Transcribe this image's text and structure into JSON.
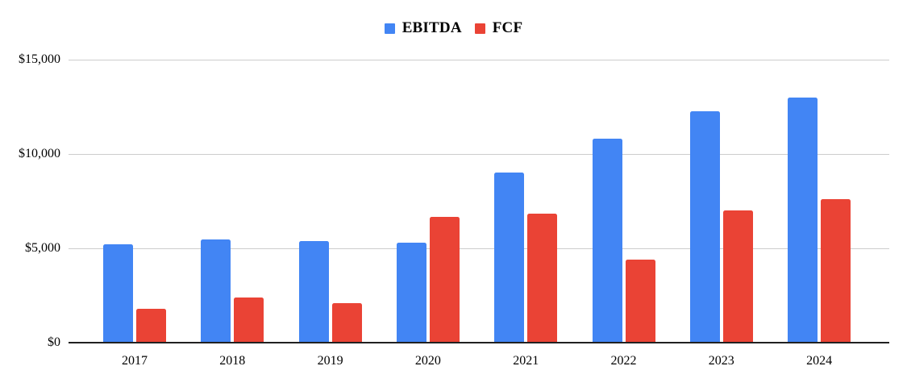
{
  "chart_data": {
    "type": "bar",
    "title": "",
    "xlabel": "",
    "ylabel": "",
    "categories": [
      "2017",
      "2018",
      "2019",
      "2020",
      "2021",
      "2022",
      "2023",
      "2024"
    ],
    "series": [
      {
        "name": "EBITDA",
        "color": "#4285F4",
        "values": [
          5200,
          5450,
          5400,
          5300,
          9000,
          10800,
          12250,
          13000
        ]
      },
      {
        "name": "FCF",
        "color": "#EA4335",
        "values": [
          1800,
          2400,
          2100,
          6650,
          6850,
          4400,
          7000,
          7600
        ]
      }
    ],
    "y_axis": {
      "max": 15000,
      "min": 0,
      "ticks": [
        {
          "label": "$0",
          "value": 0
        },
        {
          "label": "$5,000",
          "value": 5000
        },
        {
          "label": "$10,000",
          "value": 10000
        },
        {
          "label": "$15,000",
          "value": 15000
        }
      ]
    },
    "legend_position": "top-center",
    "grid": true
  },
  "colors": {
    "background": "#ffffff",
    "gridline": "#cccccc",
    "axis": "#212121",
    "text": "#000000",
    "ebitda": "#4285F4",
    "fcf": "#EA4335"
  }
}
